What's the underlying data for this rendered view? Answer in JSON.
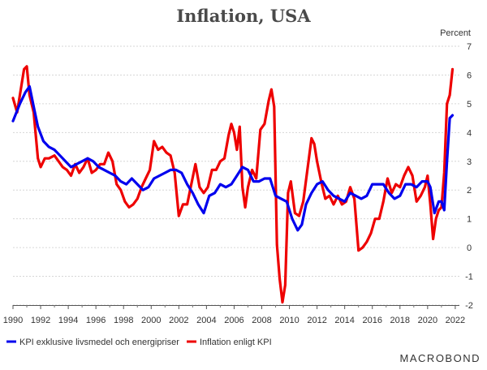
{
  "chart_data": {
    "type": "line",
    "title": "Inflation, USA",
    "ylabel": "Percent",
    "xlabel": "",
    "xlim": [
      1990,
      2022.3
    ],
    "ylim": [
      -2,
      7
    ],
    "x_ticks": [
      "1990",
      "1992",
      "1994",
      "1996",
      "1998",
      "2000",
      "2002",
      "2004",
      "2006",
      "2008",
      "2010",
      "2012",
      "2014",
      "2016",
      "2018",
      "2020",
      "2022"
    ],
    "y_ticks": [
      "-2",
      "-1",
      "0",
      "1",
      "2",
      "3",
      "4",
      "5",
      "6",
      "7"
    ],
    "grid": true,
    "legend_position": "bottom-left",
    "series": [
      {
        "name": "KPI exklusive livsmedel och energipriser",
        "color": "#0000ee",
        "x": [
          1990.0,
          1990.5,
          1990.9,
          1991.2,
          1991.5,
          1991.8,
          1992.2,
          1992.6,
          1993.0,
          1993.4,
          1993.8,
          1994.2,
          1994.6,
          1995.0,
          1995.4,
          1995.8,
          1996.2,
          1996.6,
          1997.0,
          1997.4,
          1997.8,
          1998.2,
          1998.6,
          1999.0,
          1999.4,
          1999.8,
          2000.2,
          2000.6,
          2001.0,
          2001.4,
          2001.8,
          2002.2,
          2002.6,
          2003.0,
          2003.4,
          2003.8,
          2004.2,
          2004.6,
          2005.0,
          2005.4,
          2005.8,
          2006.2,
          2006.6,
          2007.0,
          2007.4,
          2007.8,
          2008.2,
          2008.6,
          2009.0,
          2009.4,
          2009.8,
          2010.2,
          2010.6,
          2010.9,
          2011.2,
          2011.6,
          2012.0,
          2012.4,
          2012.8,
          2013.2,
          2013.6,
          2014.0,
          2014.4,
          2014.8,
          2015.2,
          2015.6,
          2016.0,
          2016.4,
          2016.8,
          2017.2,
          2017.6,
          2018.0,
          2018.4,
          2018.8,
          2019.2,
          2019.6,
          2020.0,
          2020.2,
          2020.5,
          2020.8,
          2021.0,
          2021.2,
          2021.4,
          2021.6,
          2021.8
        ],
        "values": [
          4.4,
          5.0,
          5.4,
          5.6,
          4.9,
          4.2,
          3.7,
          3.5,
          3.4,
          3.2,
          3.0,
          2.8,
          2.9,
          3.0,
          3.1,
          3.0,
          2.8,
          2.7,
          2.6,
          2.5,
          2.3,
          2.2,
          2.4,
          2.2,
          2.0,
          2.1,
          2.4,
          2.5,
          2.6,
          2.7,
          2.7,
          2.6,
          2.2,
          1.9,
          1.5,
          1.2,
          1.8,
          1.9,
          2.2,
          2.1,
          2.2,
          2.5,
          2.8,
          2.7,
          2.3,
          2.3,
          2.4,
          2.4,
          1.8,
          1.7,
          1.6,
          1.0,
          0.6,
          0.8,
          1.5,
          1.9,
          2.2,
          2.3,
          2.0,
          1.8,
          1.7,
          1.6,
          1.9,
          1.8,
          1.7,
          1.8,
          2.2,
          2.2,
          2.2,
          1.9,
          1.7,
          1.8,
          2.2,
          2.2,
          2.1,
          2.3,
          2.3,
          2.1,
          1.2,
          1.6,
          1.6,
          1.3,
          3.0,
          4.5,
          4.6
        ]
      },
      {
        "name": "Inflation enligt KPI",
        "color": "#ee0000",
        "x": [
          1990.0,
          1990.3,
          1990.6,
          1990.8,
          1991.0,
          1991.2,
          1991.5,
          1991.8,
          1992.0,
          1992.3,
          1992.6,
          1993.0,
          1993.3,
          1993.6,
          1993.9,
          1994.2,
          1994.5,
          1994.8,
          1995.1,
          1995.4,
          1995.7,
          1996.0,
          1996.3,
          1996.6,
          1996.9,
          1997.2,
          1997.5,
          1997.8,
          1998.1,
          1998.4,
          1998.7,
          1999.0,
          1999.3,
          1999.6,
          1999.9,
          2000.2,
          2000.5,
          2000.8,
          2001.1,
          2001.4,
          2001.7,
          2002.0,
          2002.3,
          2002.6,
          2002.9,
          2003.2,
          2003.5,
          2003.8,
          2004.1,
          2004.4,
          2004.7,
          2005.0,
          2005.3,
          2005.6,
          2005.8,
          2006.0,
          2006.2,
          2006.4,
          2006.6,
          2006.8,
          2007.0,
          2007.3,
          2007.6,
          2007.9,
          2008.2,
          2008.5,
          2008.7,
          2008.9,
          2009.1,
          2009.3,
          2009.5,
          2009.7,
          2009.9,
          2010.1,
          2010.4,
          2010.7,
          2011.0,
          2011.3,
          2011.6,
          2011.8,
          2012.0,
          2012.3,
          2012.6,
          2012.9,
          2013.2,
          2013.5,
          2013.8,
          2014.1,
          2014.4,
          2014.7,
          2015.0,
          2015.3,
          2015.6,
          2015.9,
          2016.2,
          2016.5,
          2016.8,
          2017.1,
          2017.4,
          2017.7,
          2018.0,
          2018.3,
          2018.6,
          2018.9,
          2019.2,
          2019.5,
          2019.8,
          2020.0,
          2020.2,
          2020.4,
          2020.6,
          2020.8,
          2021.0,
          2021.2,
          2021.4,
          2021.6,
          2021.8
        ],
        "values": [
          5.2,
          4.7,
          5.6,
          6.2,
          6.3,
          5.3,
          4.7,
          3.1,
          2.8,
          3.1,
          3.1,
          3.2,
          3.0,
          2.8,
          2.7,
          2.5,
          2.9,
          2.6,
          2.8,
          3.1,
          2.6,
          2.7,
          2.9,
          2.9,
          3.3,
          3.0,
          2.2,
          2.0,
          1.6,
          1.4,
          1.5,
          1.7,
          2.1,
          2.4,
          2.7,
          3.7,
          3.4,
          3.5,
          3.3,
          3.2,
          2.6,
          1.1,
          1.5,
          1.5,
          2.2,
          2.9,
          2.1,
          1.9,
          2.1,
          2.7,
          2.7,
          3.0,
          3.1,
          3.9,
          4.3,
          4.0,
          3.4,
          4.2,
          2.1,
          1.4,
          2.1,
          2.7,
          2.4,
          4.1,
          4.3,
          5.1,
          5.5,
          4.9,
          0.1,
          -1.1,
          -1.9,
          -1.3,
          1.9,
          2.3,
          1.2,
          1.1,
          1.6,
          2.7,
          3.8,
          3.6,
          3.0,
          2.3,
          1.7,
          1.8,
          1.5,
          1.8,
          1.5,
          1.6,
          2.1,
          1.7,
          -0.1,
          0.0,
          0.2,
          0.5,
          1.0,
          1.0,
          1.6,
          2.4,
          1.9,
          2.2,
          2.1,
          2.5,
          2.8,
          2.5,
          1.6,
          1.8,
          2.1,
          2.5,
          1.5,
          0.3,
          1.0,
          1.3,
          1.4,
          2.6,
          5.0,
          5.3,
          6.2
        ]
      }
    ]
  },
  "branding": {
    "logo_text": "MACROBOND"
  }
}
